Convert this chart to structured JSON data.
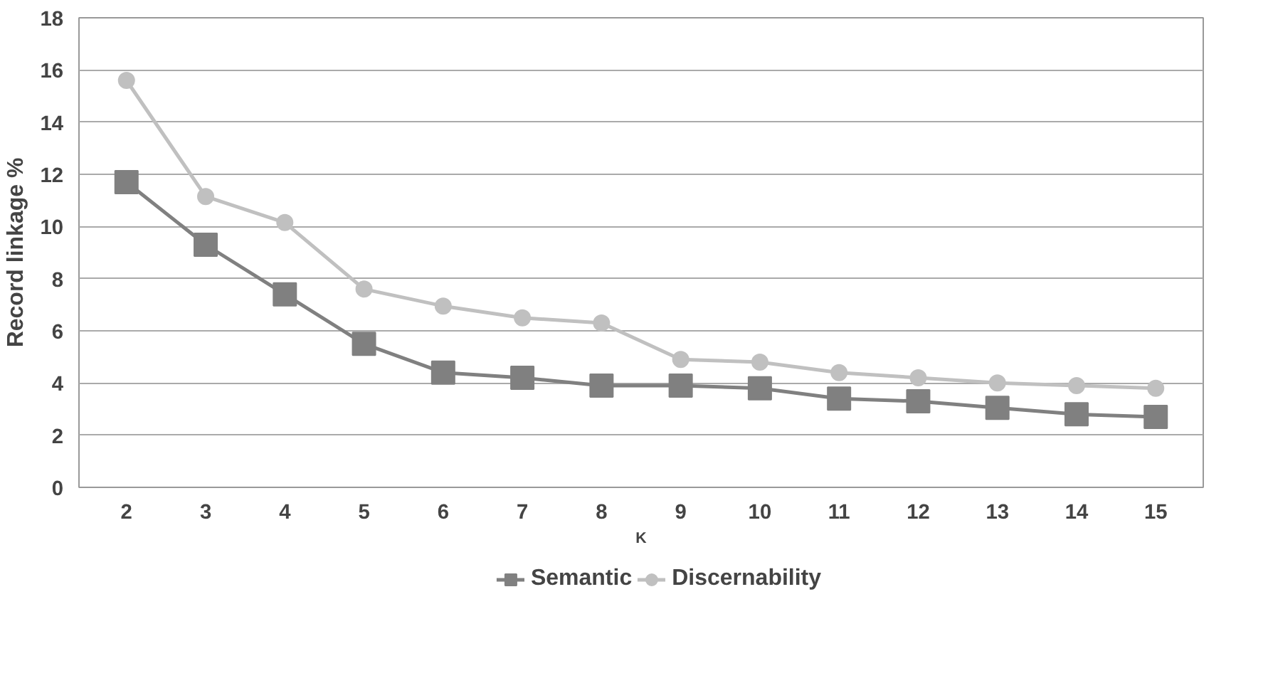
{
  "chart_data": {
    "type": "line",
    "xlabel": "K",
    "ylabel": "Record linkage %",
    "categories": [
      "2",
      "3",
      "4",
      "5",
      "6",
      "7",
      "8",
      "9",
      "10",
      "11",
      "12",
      "13",
      "14",
      "15"
    ],
    "series": [
      {
        "name": "Semantic",
        "color": "#808080",
        "marker": "square",
        "values": [
          11.7,
          9.3,
          7.4,
          5.5,
          4.4,
          4.2,
          3.9,
          3.9,
          3.8,
          3.4,
          3.3,
          3.05,
          2.8,
          2.7
        ]
      },
      {
        "name": "Discernability",
        "color": "#c0c0c0",
        "marker": "circle",
        "values": [
          15.6,
          11.15,
          10.15,
          7.6,
          6.95,
          6.5,
          6.3,
          4.9,
          4.8,
          4.4,
          4.2,
          4.0,
          3.9,
          3.8
        ]
      }
    ],
    "ylim": [
      0,
      18
    ],
    "yticks": [
      0,
      2,
      4,
      6,
      8,
      10,
      12,
      14,
      16,
      18
    ],
    "grid": "y",
    "legend": "bottom",
    "line_style": "solid"
  }
}
